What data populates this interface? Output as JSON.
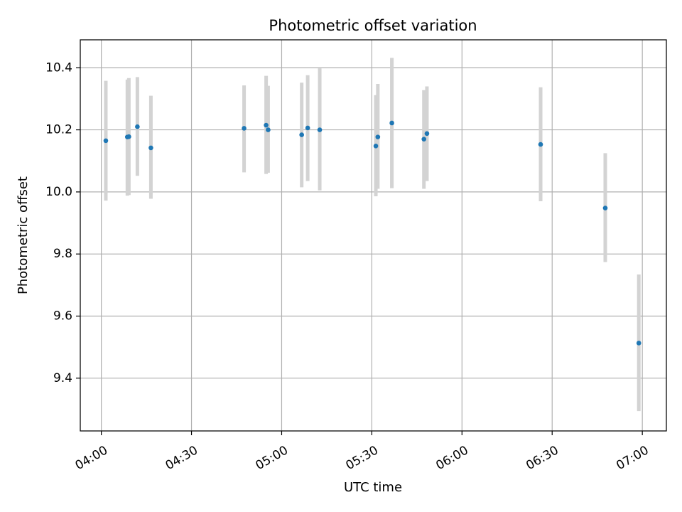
{
  "chart_data": {
    "type": "scatter",
    "title": "Photometric offset variation",
    "xlabel": "UTC time",
    "ylabel": "Photometric offset",
    "x_axis_type": "time",
    "xlim": [
      "03:53",
      "07:08"
    ],
    "ylim": [
      9.23,
      10.49
    ],
    "x_ticks": [
      "04:00",
      "04:30",
      "05:00",
      "05:30",
      "06:00",
      "06:30",
      "07:00"
    ],
    "y_ticks": [
      9.4,
      9.6,
      9.8,
      10.0,
      10.2,
      10.4
    ],
    "y_tick_labels": [
      "9.4",
      "9.6",
      "9.8",
      "10.0",
      "10.2",
      "10.4"
    ],
    "grid": true,
    "legend": "none",
    "colors": {
      "point": "#1f77b4",
      "errorbar": "#d3d3d3",
      "grid": "#b0b0b0",
      "axes": "#000000"
    },
    "series": [
      {
        "points": [
          {
            "time": "04:01:30",
            "y": 10.165,
            "low": 9.972,
            "high": 10.358
          },
          {
            "time": "04:08:40",
            "y": 10.177,
            "low": 9.988,
            "high": 10.362
          },
          {
            "time": "04:09:10",
            "y": 10.178,
            "low": 9.99,
            "high": 10.367
          },
          {
            "time": "04:12:00",
            "y": 10.21,
            "low": 10.052,
            "high": 10.37
          },
          {
            "time": "04:16:30",
            "y": 10.142,
            "low": 9.978,
            "high": 10.31
          },
          {
            "time": "04:47:30",
            "y": 10.205,
            "low": 10.063,
            "high": 10.343
          },
          {
            "time": "04:54:50",
            "y": 10.215,
            "low": 10.058,
            "high": 10.374
          },
          {
            "time": "04:55:30",
            "y": 10.2,
            "low": 10.062,
            "high": 10.342
          },
          {
            "time": "05:06:40",
            "y": 10.184,
            "low": 10.015,
            "high": 10.352
          },
          {
            "time": "05:08:40",
            "y": 10.206,
            "low": 10.035,
            "high": 10.376
          },
          {
            "time": "05:12:40",
            "y": 10.2,
            "low": 10.005,
            "high": 10.398
          },
          {
            "time": "05:31:20",
            "y": 10.148,
            "low": 9.986,
            "high": 10.312
          },
          {
            "time": "05:32:00",
            "y": 10.177,
            "low": 10.01,
            "high": 10.348
          },
          {
            "time": "05:36:40",
            "y": 10.222,
            "low": 10.012,
            "high": 10.432
          },
          {
            "time": "05:47:20",
            "y": 10.17,
            "low": 10.01,
            "high": 10.328
          },
          {
            "time": "05:48:20",
            "y": 10.188,
            "low": 10.035,
            "high": 10.34
          },
          {
            "time": "06:26:10",
            "y": 10.153,
            "low": 9.97,
            "high": 10.337
          },
          {
            "time": "06:47:40",
            "y": 9.948,
            "low": 9.774,
            "high": 10.125
          },
          {
            "time": "06:58:50",
            "y": 9.513,
            "low": 9.294,
            "high": 9.734
          }
        ]
      }
    ]
  }
}
